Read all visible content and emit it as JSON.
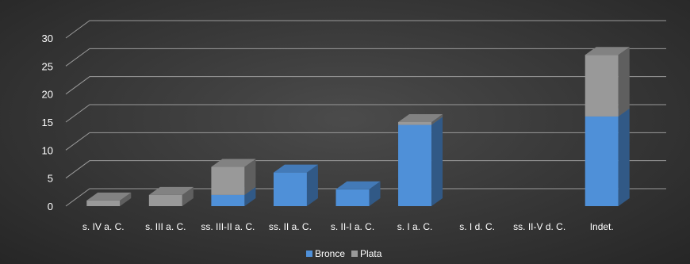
{
  "chart_data": {
    "type": "bar",
    "stacked": true,
    "style": "3d-column",
    "categories": [
      "s. IV a. C.",
      "s. III a. C.",
      "ss. III-II a. C.",
      "ss. II a. C.",
      "s. II-I a. C.",
      "s. I a. C.",
      "s. I d. C.",
      "ss. II-V d. C.",
      "Indet."
    ],
    "series": [
      {
        "name": "Bronce",
        "color": "#4f90d8",
        "values": [
          0,
          0,
          2,
          6,
          3,
          14.5,
          0,
          0,
          16
        ]
      },
      {
        "name": "Plata",
        "color": "#999999",
        "values": [
          1,
          2,
          5,
          0,
          0,
          0.5,
          0,
          0,
          11
        ]
      }
    ],
    "ylim": [
      0,
      30
    ],
    "yticks": [
      0,
      5,
      10,
      15,
      20,
      25,
      30
    ],
    "grid": true,
    "legend": "bottom",
    "title": "",
    "xlabel": "",
    "ylabel": ""
  }
}
